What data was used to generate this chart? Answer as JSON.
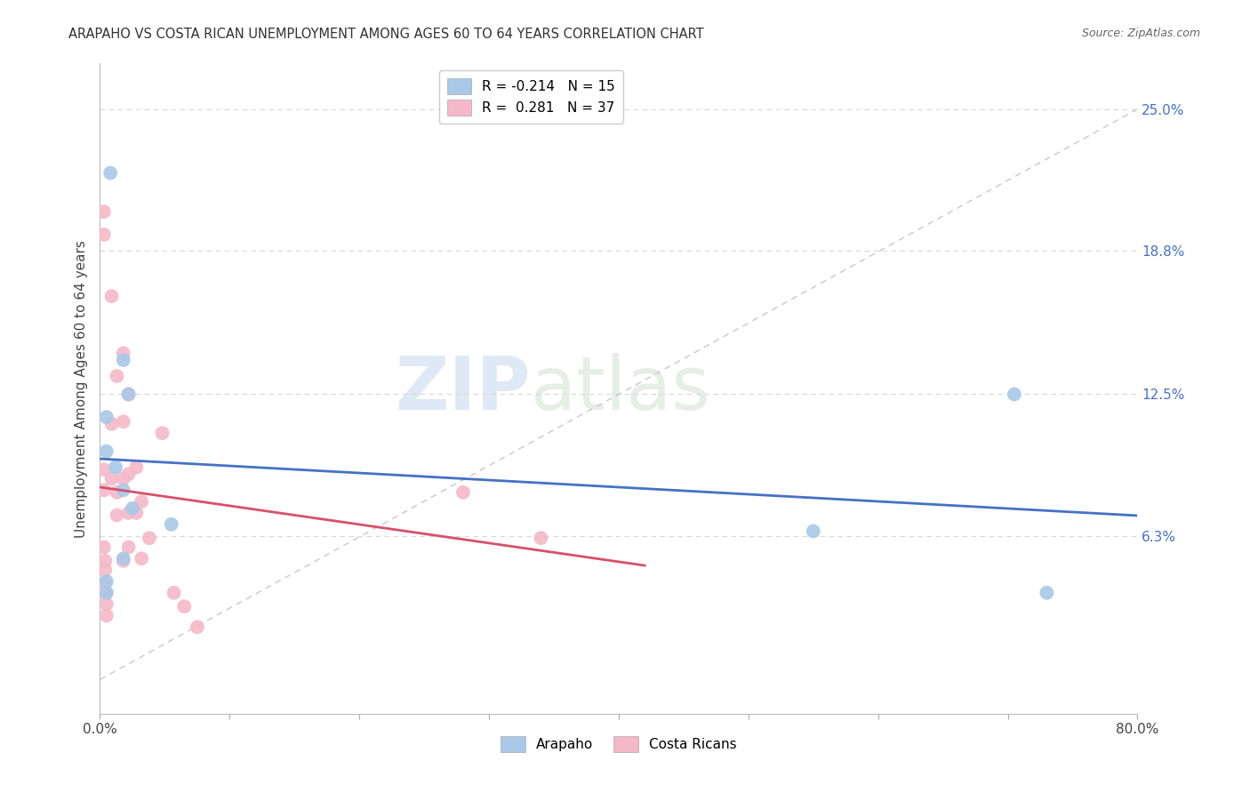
{
  "title": "ARAPAHO VS COSTA RICAN UNEMPLOYMENT AMONG AGES 60 TO 64 YEARS CORRELATION CHART",
  "source": "Source: ZipAtlas.com",
  "ylabel": "Unemployment Among Ages 60 to 64 years",
  "xlim": [
    0.0,
    0.8
  ],
  "ylim": [
    -0.015,
    0.27
  ],
  "xticks": [
    0.0,
    0.1,
    0.2,
    0.3,
    0.4,
    0.5,
    0.6,
    0.7,
    0.8
  ],
  "xticklabels": [
    "0.0%",
    "",
    "",
    "",
    "",
    "",
    "",
    "",
    "80.0%"
  ],
  "ytick_positions": [
    0.0,
    0.063,
    0.125,
    0.188,
    0.25
  ],
  "ytick_labels": [
    "",
    "6.3%",
    "12.5%",
    "18.8%",
    "25.0%"
  ],
  "arapaho_color": "#a8c8e8",
  "costa_rican_color": "#f5b8c8",
  "arapaho_line_color": "#4472c4",
  "costa_rican_line_color": "#d94f6a",
  "ref_line_color": "#c8c8c8",
  "legend_r_arapaho": "-0.214",
  "legend_n_arapaho": "15",
  "legend_r_costa": "0.281",
  "legend_n_costa": "37",
  "watermark_zip": "ZIP",
  "watermark_atlas": "atlas",
  "arapaho_x": [
    0.008,
    0.018,
    0.022,
    0.005,
    0.005,
    0.012,
    0.018,
    0.025,
    0.055,
    0.018,
    0.005,
    0.005,
    0.705,
    0.55,
    0.73
  ],
  "arapaho_y": [
    0.222,
    0.14,
    0.125,
    0.115,
    0.1,
    0.093,
    0.083,
    0.075,
    0.068,
    0.053,
    0.043,
    0.038,
    0.125,
    0.065,
    0.038
  ],
  "costa_x": [
    0.003,
    0.003,
    0.003,
    0.003,
    0.003,
    0.004,
    0.004,
    0.004,
    0.004,
    0.005,
    0.005,
    0.005,
    0.009,
    0.009,
    0.009,
    0.013,
    0.013,
    0.013,
    0.018,
    0.018,
    0.018,
    0.018,
    0.022,
    0.022,
    0.022,
    0.022,
    0.028,
    0.028,
    0.032,
    0.032,
    0.038,
    0.048,
    0.28,
    0.34,
    0.057,
    0.065,
    0.075
  ],
  "costa_y": [
    0.205,
    0.195,
    0.092,
    0.083,
    0.058,
    0.052,
    0.048,
    0.042,
    0.038,
    0.038,
    0.033,
    0.028,
    0.168,
    0.112,
    0.088,
    0.133,
    0.082,
    0.072,
    0.143,
    0.113,
    0.088,
    0.052,
    0.125,
    0.09,
    0.073,
    0.058,
    0.093,
    0.073,
    0.078,
    0.053,
    0.062,
    0.108,
    0.082,
    0.062,
    0.038,
    0.032,
    0.023
  ]
}
